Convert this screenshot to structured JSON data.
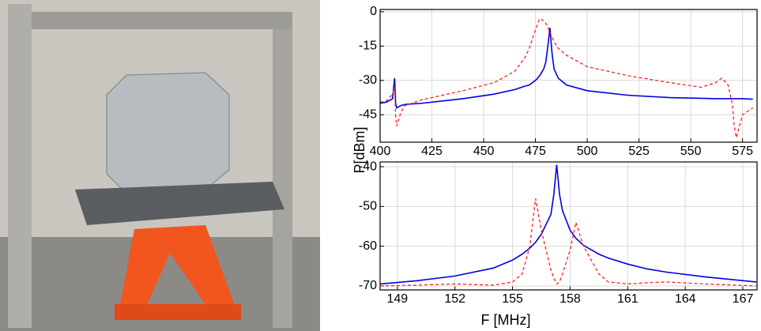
{
  "chart_data": [
    {
      "type": "line",
      "ylabel": "P[dBm]",
      "x": [
        400,
        403,
        406,
        407,
        407.5,
        408,
        410,
        412,
        420,
        440,
        455,
        465,
        470,
        472,
        475,
        477,
        479,
        480,
        481,
        482,
        483,
        484,
        486,
        490,
        500,
        520,
        540,
        555,
        562,
        565,
        568,
        570,
        571,
        572,
        575,
        580
      ],
      "xlim": [
        400,
        582
      ],
      "xticks": [
        400,
        425,
        450,
        475,
        500,
        525,
        550,
        575
      ],
      "ylim": [
        -57,
        1
      ],
      "yticks": [
        0,
        -15,
        -30,
        -45
      ],
      "grid": true,
      "series": [
        {
          "color": "#0000dd",
          "style": "solid",
          "values": [
            -40,
            -39.5,
            -38,
            -29,
            -40,
            -42,
            -41,
            -40.5,
            -40,
            -38,
            -36,
            -34,
            -32.5,
            -32,
            -30,
            -28,
            -25,
            -22,
            -15,
            -7,
            -18,
            -25,
            -29,
            -32,
            -34.5,
            -36.5,
            -37.5,
            -37.8,
            -38,
            -38,
            -38,
            -38,
            -38,
            -38,
            -38,
            -38.2
          ]
        },
        {
          "color": "#ff2020",
          "style": "dashed",
          "values": [
            -39.5,
            -39,
            -36,
            -33,
            -45,
            -50,
            -44,
            -41,
            -38.5,
            -34.5,
            -31,
            -26,
            -20,
            -16,
            -8,
            -3,
            -4,
            -5,
            -7,
            -9,
            -11,
            -13,
            -16,
            -19,
            -24,
            -28,
            -31,
            -33,
            -31,
            -29,
            -32,
            -40,
            -50,
            -55,
            -45,
            -42
          ]
        }
      ]
    },
    {
      "type": "line",
      "xlabel": "F [MHz]",
      "x": [
        148.1,
        150,
        152,
        154,
        155,
        155.5,
        155.9,
        156.2,
        156.5,
        157,
        157.15,
        157.3,
        157.45,
        157.6,
        158,
        158.3,
        158.7,
        159.5,
        160,
        161,
        162,
        163,
        165,
        167.7
      ],
      "xlim": [
        148.1,
        167.74
      ],
      "xticks": [
        149,
        152,
        155,
        158,
        161,
        164,
        167
      ],
      "ylim": [
        -71,
        -38.8
      ],
      "yticks": [
        -40,
        -50,
        -60,
        -70
      ],
      "grid": true,
      "series": [
        {
          "color": "#0000dd",
          "style": "solid",
          "values": [
            -69.5,
            -68.7,
            -67.5,
            -65.5,
            -63.5,
            -62,
            -60.5,
            -59,
            -57,
            -52,
            -47,
            -39.5,
            -47,
            -51,
            -56,
            -58,
            -59.8,
            -62,
            -63,
            -64.5,
            -65.7,
            -66.5,
            -67.7,
            -69
          ]
        },
        {
          "color": "#ff2020",
          "style": "dashed",
          "values": [
            -70,
            -69.8,
            -69.5,
            -69.8,
            -69,
            -67,
            -60,
            -48,
            -56,
            -66,
            -68,
            -69.5,
            -69,
            -67,
            -61,
            -54,
            -60,
            -67,
            -69,
            -69.5,
            -69.2,
            -69,
            -69.5,
            -70
          ]
        }
      ]
    }
  ]
}
